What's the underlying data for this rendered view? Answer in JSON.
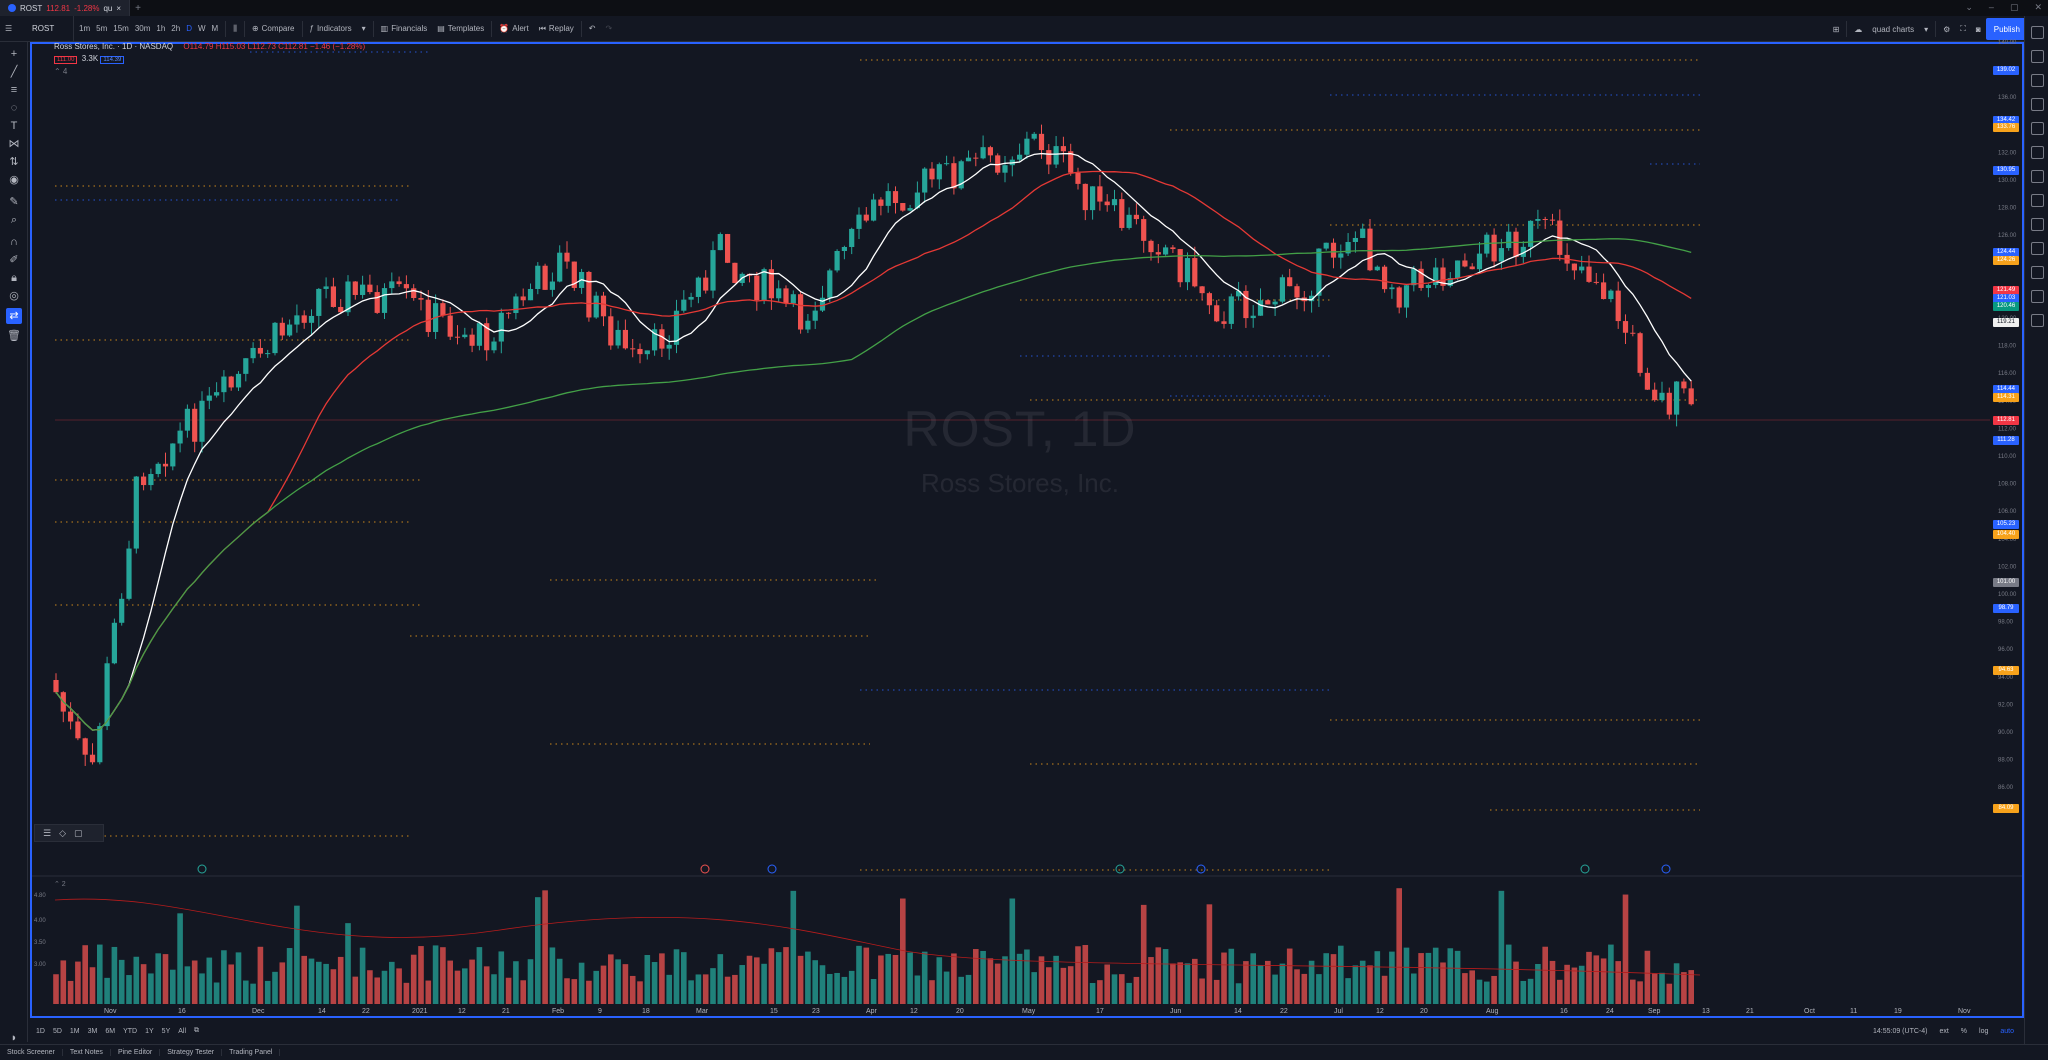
{
  "tab": {
    "symbol": "ROST",
    "price": "112.81",
    "change": "-1.28%",
    "suffix": "qu"
  },
  "toolbar": {
    "symbol": "ROST",
    "intervals": [
      "1m",
      "5m",
      "15m",
      "30m",
      "1h",
      "2h",
      "D",
      "W",
      "M"
    ],
    "compare": "Compare",
    "indicators": "Indicators",
    "financials": "Financials",
    "templates": "Templates",
    "alert": "Alert",
    "replay": "Replay",
    "layout_name": "quad charts",
    "publish": "Publish"
  },
  "legend": {
    "title": "Ross Stores, Inc. · 1D · NASDAQ",
    "ohlc": "O114.79 H115.03 L112.73 C112.81 −1.46 (−1.28%)",
    "pill1": "111.00",
    "pill2": "114.39",
    "mult": "3.3K",
    "collapse": "⌃ 4"
  },
  "watermark": {
    "symbol": "ROST, 1D",
    "name": "Ross Stores, Inc."
  },
  "price_tags": [
    {
      "v": "139.02",
      "c": "#2962ff"
    },
    {
      "v": "134.42",
      "c": "#2962ff"
    },
    {
      "v": "133.76",
      "c": "#f7a21b"
    },
    {
      "v": "130.95",
      "c": "#2962ff"
    },
    {
      "v": "124.44",
      "c": "#2962ff"
    },
    {
      "v": "124.26",
      "c": "#f7a21b"
    },
    {
      "v": "121.49",
      "c": "#f23645"
    },
    {
      "v": "121.03",
      "c": "#2962ff"
    },
    {
      "v": "120.46",
      "c": "#089981"
    },
    {
      "v": "119.21",
      "c": "#f0f0f0"
    },
    {
      "v": "114.44",
      "c": "#2962ff"
    },
    {
      "v": "114.31",
      "c": "#f7a21b"
    },
    {
      "v": "112.81",
      "c": "#f23645"
    },
    {
      "v": "111.28",
      "c": "#2962ff"
    },
    {
      "v": "105.23",
      "c": "#2962ff"
    },
    {
      "v": "104.40",
      "c": "#f7a21b"
    },
    {
      "v": "101.00",
      "c": "#787b86"
    },
    {
      "v": "98.79",
      "c": "#2962ff"
    },
    {
      "v": "94.63",
      "c": "#f7a21b"
    },
    {
      "v": "84.09",
      "c": "#f7a21b"
    }
  ],
  "x_labels": [
    "Nov",
    "16",
    "Dec",
    "14",
    "22",
    "2021",
    "12",
    "21",
    "Feb",
    "9",
    "18",
    "Mar",
    "15",
    "23",
    "Apr",
    "12",
    "20",
    "May",
    "17",
    "Jun",
    "14",
    "22",
    "Jul",
    "12",
    "20",
    "Aug",
    "16",
    "24",
    "Sep",
    "13",
    "21",
    "Oct",
    "11",
    "19",
    "Nov"
  ],
  "volume": {
    "label": "⌃ 2",
    "ticks": [
      "4.80",
      "4.00",
      "3.50",
      "3.00"
    ]
  },
  "bottom_bar": {
    "ranges": [
      "1D",
      "5D",
      "1M",
      "3M",
      "6M",
      "YTD",
      "1Y",
      "5Y",
      "All"
    ],
    "time": "14:55:09 (UTC-4)",
    "opts": [
      "ext",
      "%",
      "log",
      "auto"
    ]
  },
  "footer": [
    "Stock Screener",
    "Text Notes",
    "Pine Editor",
    "Strategy Tester",
    "Trading Panel"
  ],
  "colors": {
    "up": "#26a69a",
    "down": "#ef5350",
    "ma_white": "#ffffff",
    "ma_red": "#e53935",
    "ma_green": "#43a047"
  }
}
